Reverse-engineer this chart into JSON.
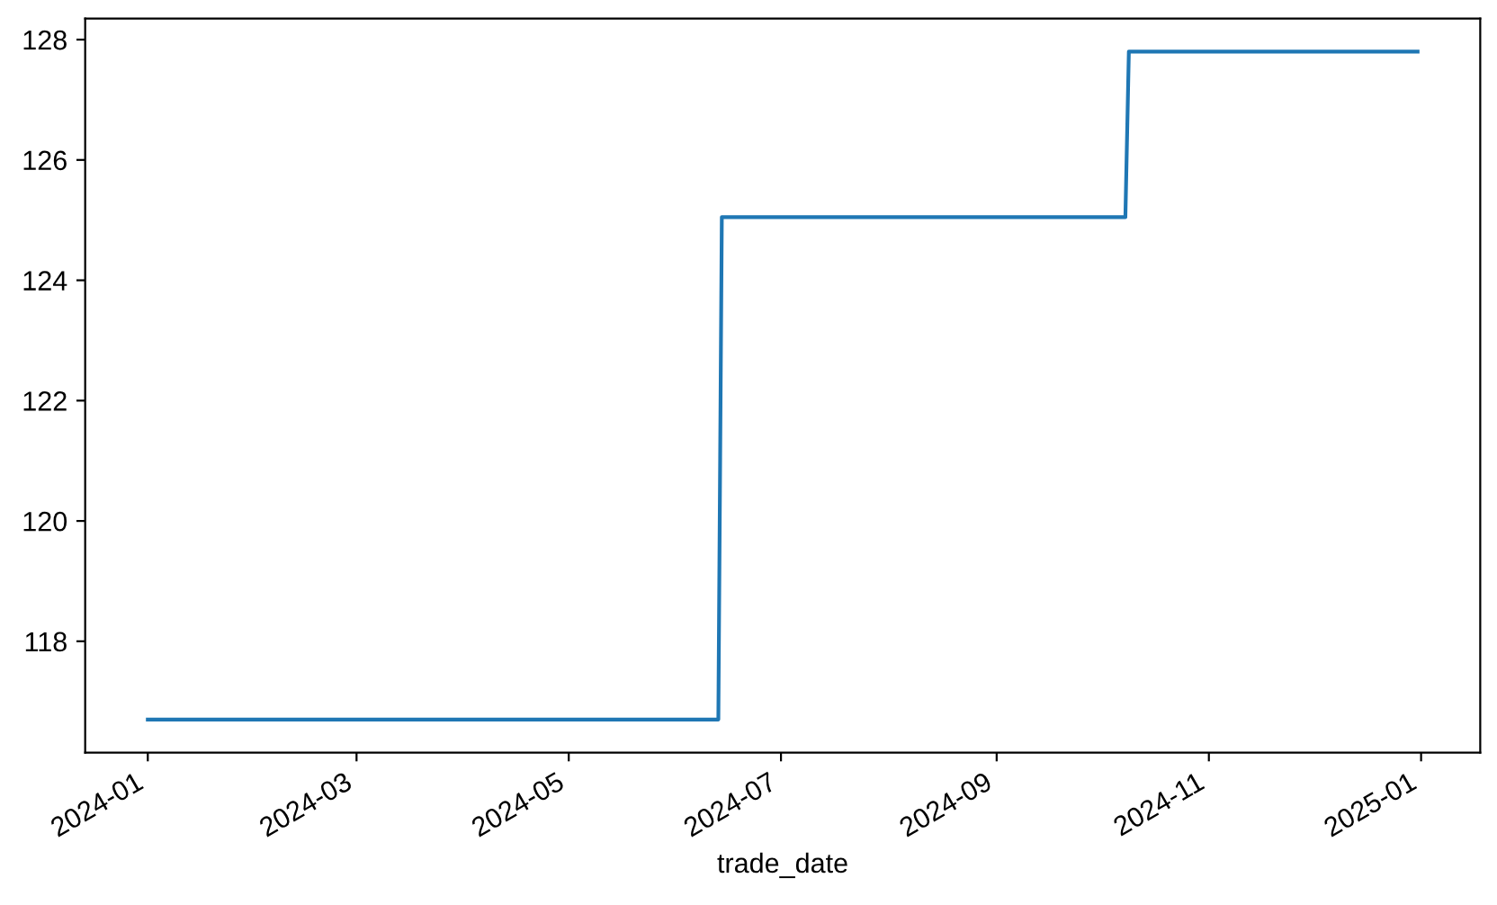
{
  "chart_data": {
    "type": "line",
    "xlabel": "trade_date",
    "x": [
      "2024-01-01",
      "2024-06-13",
      "2024-06-14",
      "2024-10-08",
      "2024-10-09",
      "2024-12-31"
    ],
    "series": [
      {
        "color": "#1f77b4",
        "values": [
          116.7,
          116.7,
          125.05,
          125.05,
          127.8,
          127.8
        ]
      }
    ],
    "xlim": [
      "2023-12-14",
      "2025-01-18"
    ],
    "xticks": [
      "2024-01",
      "2024-03",
      "2024-05",
      "2024-07",
      "2024-09",
      "2024-11",
      "2025-01"
    ],
    "ylim": [
      116.15,
      128.35
    ],
    "yticks": [
      118,
      120,
      122,
      124,
      126,
      128
    ]
  }
}
